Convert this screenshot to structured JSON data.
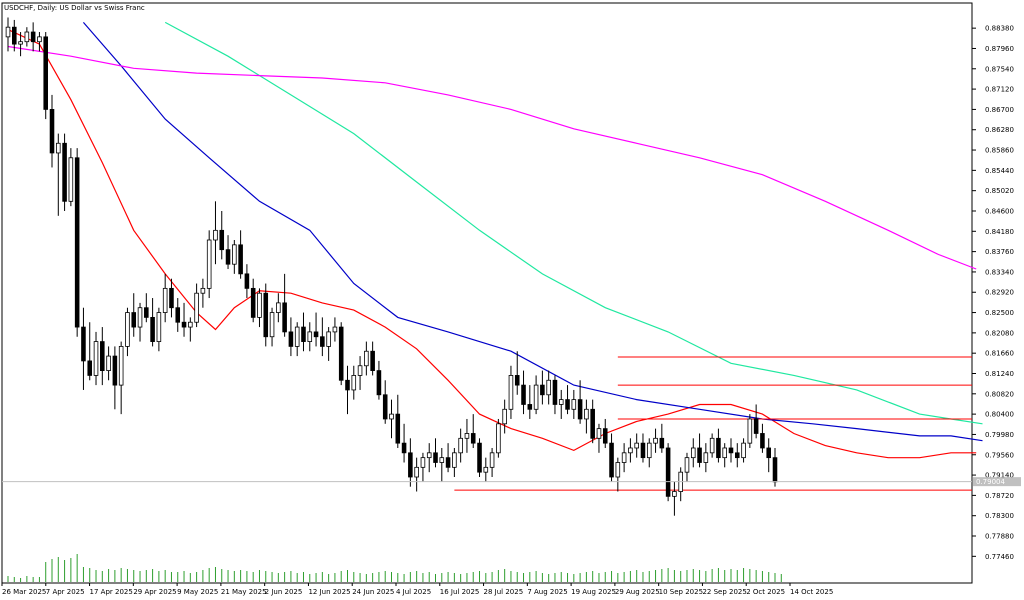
{
  "chart_data": {
    "type": "candlestick",
    "title": "USDCHF, Daily: US Dollar vs Swiss Franc",
    "x_tick_labels": [
      "26 Mar 2025",
      "7 Apr 2025",
      "17 Apr 2025",
      "29 Apr 2025",
      "9 May 2025",
      "21 May 2025",
      "2 Jun 2025",
      "12 Jun 2025",
      "24 Jun 2025",
      "4 Jul 2025",
      "16 Jul 2025",
      "28 Jul 2025",
      "7 Aug 2025",
      "19 Aug 2025",
      "29 Aug 2025",
      "10 Sep 2025",
      "22 Sep 2025",
      "2 Oct 2025",
      "14 Oct 2025"
    ],
    "y_tick_labels": [
      "0.88380",
      "0.87960",
      "0.87540",
      "0.87120",
      "0.86700",
      "0.86280",
      "0.85860",
      "0.85440",
      "0.85020",
      "0.84600",
      "0.84180",
      "0.83760",
      "0.83340",
      "0.82920",
      "0.82500",
      "0.82080",
      "0.81660",
      "0.81240",
      "0.80820",
      "0.80400",
      "0.79980",
      "0.79560",
      "0.79140",
      "0.78720",
      "0.78300",
      "0.77880",
      "0.77460"
    ],
    "ylim": [
      0.7726,
      0.8859
    ],
    "current_price": "0.79004",
    "grid": false,
    "colors": {
      "candle": "#000000",
      "ma_red": "#ff0000",
      "ma_blue": "#0000c8",
      "ma_green": "#20e8a0",
      "ma_magenta": "#ff00ff",
      "volume": "#2e9e2e",
      "level_lines": "#ff0000",
      "price_badge": "#c0c0c0"
    },
    "horizontal_levels": [
      {
        "value": 0.8158,
        "from_candle": 97
      },
      {
        "value": 0.81,
        "from_candle": 97
      },
      {
        "value": 0.803,
        "from_candle": 97
      },
      {
        "value": 0.7883,
        "from_candle": 71
      }
    ],
    "moving_averages": [
      {
        "color": "#ff0000",
        "points": [
          [
            0,
            0.8835
          ],
          [
            5,
            0.8805
          ],
          [
            10,
            0.869
          ],
          [
            15,
            0.856
          ],
          [
            20,
            0.842
          ],
          [
            25,
            0.833
          ],
          [
            30,
            0.825
          ],
          [
            33,
            0.8215
          ],
          [
            36,
            0.826
          ],
          [
            40,
            0.8295
          ],
          [
            45,
            0.829
          ],
          [
            50,
            0.827
          ],
          [
            55,
            0.8255
          ],
          [
            60,
            0.822
          ],
          [
            65,
            0.8175
          ],
          [
            70,
            0.811
          ],
          [
            75,
            0.804
          ],
          [
            80,
            0.801
          ],
          [
            85,
            0.799
          ],
          [
            90,
            0.7965
          ],
          [
            95,
            0.8
          ],
          [
            100,
            0.8025
          ],
          [
            105,
            0.804
          ],
          [
            110,
            0.806
          ],
          [
            115,
            0.806
          ],
          [
            120,
            0.804
          ],
          [
            125,
            0.8
          ],
          [
            130,
            0.7975
          ],
          [
            135,
            0.796
          ],
          [
            140,
            0.795
          ],
          [
            145,
            0.795
          ],
          [
            150,
            0.796
          ],
          [
            154,
            0.796
          ]
        ]
      },
      {
        "color": "#0000c8",
        "points": [
          [
            12,
            0.885
          ],
          [
            18,
            0.876
          ],
          [
            25,
            0.865
          ],
          [
            32,
            0.857
          ],
          [
            40,
            0.848
          ],
          [
            48,
            0.842
          ],
          [
            55,
            0.831
          ],
          [
            62,
            0.824
          ],
          [
            70,
            0.821
          ],
          [
            80,
            0.817
          ],
          [
            90,
            0.81
          ],
          [
            100,
            0.807
          ],
          [
            110,
            0.805
          ],
          [
            120,
            0.803
          ],
          [
            128,
            0.802
          ],
          [
            135,
            0.801
          ],
          [
            145,
            0.7995
          ],
          [
            150,
            0.7995
          ],
          [
            155,
            0.7985
          ]
        ]
      },
      {
        "color": "#20e8a0",
        "points": [
          [
            25,
            0.885
          ],
          [
            35,
            0.878
          ],
          [
            45,
            0.87
          ],
          [
            55,
            0.862
          ],
          [
            65,
            0.852
          ],
          [
            75,
            0.842
          ],
          [
            85,
            0.833
          ],
          [
            95,
            0.826
          ],
          [
            105,
            0.821
          ],
          [
            115,
            0.8145
          ],
          [
            125,
            0.812
          ],
          [
            135,
            0.809
          ],
          [
            145,
            0.804
          ],
          [
            150,
            0.803
          ],
          [
            155,
            0.802
          ]
        ]
      },
      {
        "color": "#ff00ff",
        "points": [
          [
            0,
            0.88
          ],
          [
            10,
            0.878
          ],
          [
            20,
            0.8755
          ],
          [
            30,
            0.8745
          ],
          [
            40,
            0.874
          ],
          [
            50,
            0.8735
          ],
          [
            60,
            0.8725
          ],
          [
            70,
            0.87
          ],
          [
            80,
            0.867
          ],
          [
            90,
            0.863
          ],
          [
            100,
            0.86
          ],
          [
            110,
            0.857
          ],
          [
            120,
            0.8535
          ],
          [
            130,
            0.848
          ],
          [
            140,
            0.842
          ],
          [
            148,
            0.837
          ],
          [
            154,
            0.834
          ]
        ]
      }
    ],
    "ohlc": [
      [
        0.882,
        0.886,
        0.879,
        0.884
      ],
      [
        0.884,
        0.8855,
        0.879,
        0.8805
      ],
      [
        0.8805,
        0.883,
        0.878,
        0.881
      ],
      [
        0.881,
        0.884,
        0.88,
        0.883
      ],
      [
        0.883,
        0.885,
        0.879,
        0.881
      ],
      [
        0.881,
        0.883,
        0.879,
        0.882
      ],
      [
        0.882,
        0.883,
        0.865,
        0.867
      ],
      [
        0.867,
        0.87,
        0.855,
        0.858
      ],
      [
        0.858,
        0.862,
        0.845,
        0.86
      ],
      [
        0.86,
        0.862,
        0.846,
        0.848
      ],
      [
        0.848,
        0.859,
        0.847,
        0.857
      ],
      [
        0.857,
        0.859,
        0.82,
        0.822
      ],
      [
        0.822,
        0.826,
        0.809,
        0.815
      ],
      [
        0.815,
        0.823,
        0.811,
        0.812
      ],
      [
        0.812,
        0.821,
        0.81,
        0.819
      ],
      [
        0.819,
        0.822,
        0.81,
        0.813
      ],
      [
        0.813,
        0.818,
        0.811,
        0.816
      ],
      [
        0.816,
        0.818,
        0.805,
        0.81
      ],
      [
        0.81,
        0.819,
        0.804,
        0.818
      ],
      [
        0.818,
        0.826,
        0.816,
        0.825
      ],
      [
        0.825,
        0.829,
        0.82,
        0.822
      ],
      [
        0.822,
        0.827,
        0.819,
        0.826
      ],
      [
        0.826,
        0.829,
        0.823,
        0.824
      ],
      [
        0.824,
        0.828,
        0.818,
        0.819
      ],
      [
        0.819,
        0.826,
        0.817,
        0.825
      ],
      [
        0.825,
        0.833,
        0.823,
        0.83
      ],
      [
        0.83,
        0.832,
        0.824,
        0.826
      ],
      [
        0.826,
        0.828,
        0.821,
        0.823
      ],
      [
        0.823,
        0.827,
        0.82,
        0.822
      ],
      [
        0.822,
        0.824,
        0.819,
        0.823
      ],
      [
        0.823,
        0.831,
        0.822,
        0.829
      ],
      [
        0.829,
        0.832,
        0.826,
        0.83
      ],
      [
        0.83,
        0.842,
        0.828,
        0.84
      ],
      [
        0.84,
        0.848,
        0.835,
        0.842
      ],
      [
        0.842,
        0.846,
        0.836,
        0.838
      ],
      [
        0.838,
        0.841,
        0.834,
        0.835
      ],
      [
        0.835,
        0.84,
        0.833,
        0.839
      ],
      [
        0.839,
        0.842,
        0.832,
        0.833
      ],
      [
        0.833,
        0.835,
        0.828,
        0.83
      ],
      [
        0.83,
        0.832,
        0.823,
        0.824
      ],
      [
        0.824,
        0.83,
        0.822,
        0.829
      ],
      [
        0.829,
        0.831,
        0.818,
        0.82
      ],
      [
        0.82,
        0.826,
        0.818,
        0.825
      ],
      [
        0.825,
        0.829,
        0.823,
        0.827
      ],
      [
        0.827,
        0.833,
        0.82,
        0.821
      ],
      [
        0.821,
        0.824,
        0.816,
        0.818
      ],
      [
        0.818,
        0.823,
        0.816,
        0.822
      ],
      [
        0.822,
        0.825,
        0.817,
        0.819
      ],
      [
        0.819,
        0.823,
        0.817,
        0.821
      ],
      [
        0.821,
        0.825,
        0.818,
        0.82
      ],
      [
        0.82,
        0.824,
        0.816,
        0.818
      ],
      [
        0.818,
        0.822,
        0.815,
        0.821
      ],
      [
        0.821,
        0.824,
        0.819,
        0.822
      ],
      [
        0.822,
        0.823,
        0.81,
        0.811
      ],
      [
        0.811,
        0.814,
        0.804,
        0.809
      ],
      [
        0.809,
        0.814,
        0.807,
        0.812
      ],
      [
        0.812,
        0.816,
        0.809,
        0.814
      ],
      [
        0.814,
        0.819,
        0.812,
        0.817
      ],
      [
        0.817,
        0.819,
        0.812,
        0.813
      ],
      [
        0.813,
        0.815,
        0.807,
        0.808
      ],
      [
        0.808,
        0.811,
        0.802,
        0.803
      ],
      [
        0.803,
        0.807,
        0.799,
        0.804
      ],
      [
        0.804,
        0.808,
        0.797,
        0.798
      ],
      [
        0.798,
        0.802,
        0.794,
        0.796
      ],
      [
        0.796,
        0.799,
        0.789,
        0.791
      ],
      [
        0.791,
        0.795,
        0.788,
        0.793
      ],
      [
        0.793,
        0.796,
        0.79,
        0.795
      ],
      [
        0.795,
        0.798,
        0.792,
        0.796
      ],
      [
        0.796,
        0.799,
        0.793,
        0.794
      ],
      [
        0.794,
        0.797,
        0.79,
        0.795
      ],
      [
        0.795,
        0.798,
        0.792,
        0.793
      ],
      [
        0.793,
        0.797,
        0.791,
        0.796
      ],
      [
        0.796,
        0.801,
        0.794,
        0.799
      ],
      [
        0.799,
        0.803,
        0.796,
        0.8
      ],
      [
        0.8,
        0.804,
        0.797,
        0.798
      ],
      [
        0.798,
        0.799,
        0.791,
        0.792
      ],
      [
        0.792,
        0.795,
        0.79,
        0.793
      ],
      [
        0.793,
        0.797,
        0.791,
        0.796
      ],
      [
        0.796,
        0.803,
        0.795,
        0.802
      ],
      [
        0.802,
        0.807,
        0.8,
        0.805
      ],
      [
        0.805,
        0.814,
        0.803,
        0.812
      ],
      [
        0.812,
        0.817,
        0.808,
        0.81
      ],
      [
        0.81,
        0.813,
        0.804,
        0.806
      ],
      [
        0.806,
        0.81,
        0.803,
        0.805
      ],
      [
        0.805,
        0.812,
        0.804,
        0.81
      ],
      [
        0.81,
        0.813,
        0.806,
        0.808
      ],
      [
        0.808,
        0.813,
        0.806,
        0.811
      ],
      [
        0.811,
        0.812,
        0.804,
        0.806
      ],
      [
        0.806,
        0.809,
        0.803,
        0.807
      ],
      [
        0.807,
        0.81,
        0.804,
        0.805
      ],
      [
        0.805,
        0.809,
        0.803,
        0.807
      ],
      [
        0.807,
        0.811,
        0.802,
        0.803
      ],
      [
        0.803,
        0.807,
        0.8,
        0.805
      ],
      [
        0.805,
        0.807,
        0.798,
        0.799
      ],
      [
        0.799,
        0.802,
        0.796,
        0.801
      ],
      [
        0.801,
        0.803,
        0.797,
        0.798
      ],
      [
        0.798,
        0.8,
        0.79,
        0.791
      ],
      [
        0.791,
        0.795,
        0.788,
        0.794
      ],
      [
        0.794,
        0.798,
        0.792,
        0.796
      ],
      [
        0.796,
        0.799,
        0.794,
        0.797
      ],
      [
        0.797,
        0.8,
        0.795,
        0.798
      ],
      [
        0.798,
        0.8,
        0.794,
        0.795
      ],
      [
        0.795,
        0.799,
        0.793,
        0.798
      ],
      [
        0.798,
        0.801,
        0.796,
        0.799
      ],
      [
        0.799,
        0.802,
        0.796,
        0.797
      ],
      [
        0.797,
        0.798,
        0.786,
        0.787
      ],
      [
        0.787,
        0.79,
        0.783,
        0.788
      ],
      [
        0.788,
        0.793,
        0.786,
        0.792
      ],
      [
        0.792,
        0.796,
        0.79,
        0.795
      ],
      [
        0.795,
        0.799,
        0.793,
        0.797
      ],
      [
        0.797,
        0.8,
        0.793,
        0.794
      ],
      [
        0.794,
        0.798,
        0.792,
        0.796
      ],
      [
        0.796,
        0.8,
        0.795,
        0.799
      ],
      [
        0.799,
        0.801,
        0.794,
        0.795
      ],
      [
        0.795,
        0.798,
        0.793,
        0.797
      ],
      [
        0.797,
        0.799,
        0.794,
        0.796
      ],
      [
        0.796,
        0.798,
        0.793,
        0.795
      ],
      [
        0.795,
        0.799,
        0.794,
        0.798
      ],
      [
        0.798,
        0.804,
        0.797,
        0.803
      ],
      [
        0.803,
        0.806,
        0.799,
        0.8
      ],
      [
        0.8,
        0.802,
        0.796,
        0.797
      ],
      [
        0.797,
        0.799,
        0.792,
        0.795
      ],
      [
        0.795,
        0.797,
        0.789,
        0.79
      ]
    ],
    "volume": [
      6,
      5,
      4,
      6,
      5,
      5,
      20,
      23,
      25,
      22,
      24,
      28,
      15,
      14,
      12,
      11,
      13,
      12,
      14,
      13,
      12,
      11,
      12,
      13,
      11,
      12,
      10,
      10,
      11,
      9,
      10,
      12,
      14,
      15,
      13,
      12,
      11,
      12,
      11,
      10,
      12,
      11,
      10,
      9,
      10,
      11,
      9,
      10,
      8,
      9,
      10,
      8,
      9,
      11,
      12,
      10,
      9,
      8,
      9,
      10,
      11,
      10,
      9,
      8,
      10,
      11,
      9,
      10,
      8,
      9,
      10,
      9,
      8,
      9,
      10,
      11,
      9,
      10,
      12,
      13,
      11,
      10,
      9,
      10,
      11,
      9,
      8,
      9,
      10,
      9,
      8,
      9,
      10,
      11,
      9,
      10,
      11,
      9,
      10,
      11,
      12,
      10,
      11,
      12,
      13,
      14,
      12,
      11,
      12,
      13,
      12,
      11,
      13,
      14,
      12,
      13,
      12,
      14,
      13,
      12,
      11,
      10,
      9,
      8
    ],
    "volume_max": 60
  }
}
